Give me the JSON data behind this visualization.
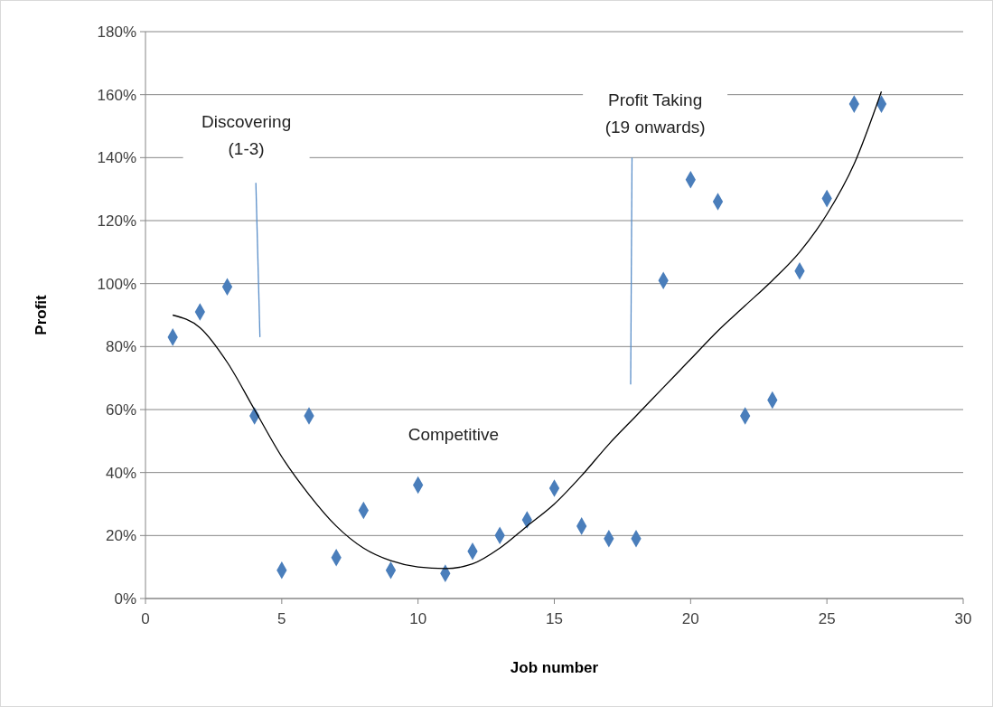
{
  "chart_data": {
    "type": "scatter",
    "xlabel": "Job number",
    "ylabel": "Profit",
    "xlim": [
      0,
      30
    ],
    "xticks": [
      0,
      5,
      10,
      15,
      20,
      25,
      30
    ],
    "ylim": [
      0,
      180
    ],
    "yticks": [
      {
        "value": 0,
        "label": "0%"
      },
      {
        "value": 20,
        "label": "20%"
      },
      {
        "value": 40,
        "label": "40%"
      },
      {
        "value": 60,
        "label": "60%"
      },
      {
        "value": 80,
        "label": "80%"
      },
      {
        "value": 100,
        "label": "100%"
      },
      {
        "value": 120,
        "label": "120%"
      },
      {
        "value": 140,
        "label": "140%"
      },
      {
        "value": 160,
        "label": "160%"
      },
      {
        "value": 180,
        "label": "180%"
      }
    ],
    "grid": "y",
    "marker": "diamond",
    "series": [
      {
        "color": "#4a7ebb",
        "x": [
          1,
          2,
          3,
          4,
          5,
          6,
          7,
          8,
          9,
          10,
          11,
          12,
          13,
          14,
          15,
          16,
          17,
          18,
          19,
          20,
          21,
          22,
          23,
          24,
          25,
          26,
          27
        ],
        "values": [
          83,
          91,
          99,
          58,
          9,
          58,
          13,
          28,
          9,
          36,
          8,
          15,
          20,
          25,
          35,
          23,
          19,
          19,
          101,
          133,
          126,
          58,
          63,
          104,
          127,
          157,
          157
        ]
      },
      {
        "type": "line",
        "color": "#000000",
        "marker": "none",
        "x": [
          1,
          2,
          3,
          4,
          5,
          6,
          7,
          8,
          9,
          10,
          11,
          12,
          13,
          14,
          15,
          16,
          17,
          18,
          19,
          20,
          21,
          22,
          23,
          24,
          25,
          26,
          27
        ],
        "values": [
          90,
          86,
          75,
          60,
          45,
          33,
          23,
          16,
          12,
          10,
          9.5,
          11,
          16,
          23,
          30,
          39,
          49,
          58,
          67,
          76,
          85,
          93,
          101,
          110,
          122,
          138,
          161
        ]
      }
    ],
    "annotations": [
      "Discovering\n(1-3)",
      "Profit Taking\n(19 onwards)",
      "Competitive"
    ]
  }
}
